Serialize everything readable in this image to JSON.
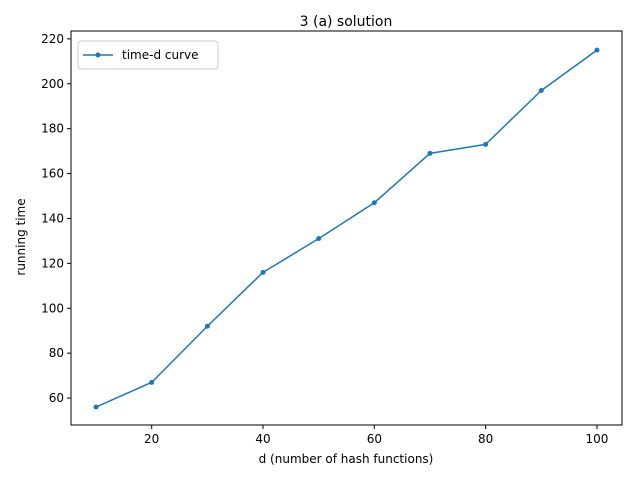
{
  "chart_data": {
    "type": "line",
    "title": "3 (a) solution",
    "xlabel": "d (number of hash functions)",
    "ylabel": "running time",
    "xlim": [
      5.5,
      104.5
    ],
    "ylim": [
      48,
      223.5
    ],
    "xticks": [
      20,
      40,
      60,
      80,
      100
    ],
    "yticks": [
      60,
      80,
      100,
      120,
      140,
      160,
      180,
      200,
      220
    ],
    "grid": false,
    "legend_position": "upper-left",
    "series": [
      {
        "name": "time-d curve",
        "color": "#1f77b4",
        "marker": "point",
        "x": [
          10,
          20,
          30,
          40,
          50,
          60,
          70,
          80,
          90,
          100
        ],
        "y": [
          56,
          67,
          92,
          116,
          131,
          147,
          169,
          173,
          197,
          215
        ]
      }
    ]
  }
}
